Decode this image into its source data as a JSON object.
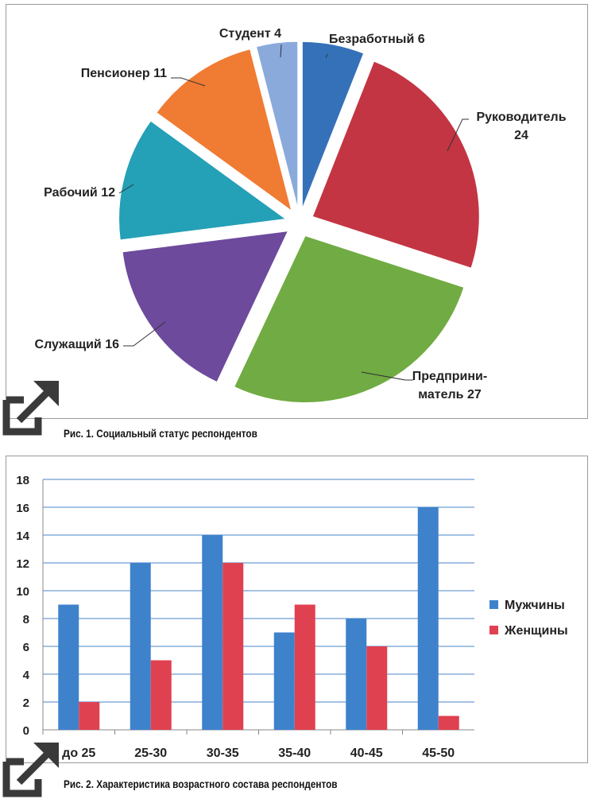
{
  "charts": {
    "pie": {
      "caption": "Рис. 1. Социальный статус респондентов",
      "chart_data": {
        "type": "pie",
        "slices": [
          {
            "label_lines": [
              "Безработный 6"
            ],
            "value": 6,
            "color": "#3571b8"
          },
          {
            "label_lines": [
              "Руководитель",
              "24"
            ],
            "value": 24,
            "color": "#c33543"
          },
          {
            "label_lines": [
              "Предприни-",
              "матель 27"
            ],
            "value": 27,
            "color": "#71ab43"
          },
          {
            "label_lines": [
              "Служащий 16"
            ],
            "value": 16,
            "color": "#6d4a9c"
          },
          {
            "label_lines": [
              "Рабочий 12"
            ],
            "value": 12,
            "color": "#24a0b7"
          },
          {
            "label_lines": [
              "Пенсионер 11"
            ],
            "value": 11,
            "color": "#f07b33"
          },
          {
            "label_lines": [
              "Студент 4"
            ],
            "value": 4,
            "color": "#8aaadb"
          }
        ]
      }
    },
    "bar": {
      "caption": "Рис. 2. Характеристика возрастного состава респондентов",
      "chart_data": {
        "type": "bar",
        "categories": [
          "до 25",
          "25-30",
          "30-35",
          "35-40",
          "40-45",
          "45-50"
        ],
        "series": [
          {
            "name": "Мужчины",
            "values": [
              9,
              12,
              14,
              7,
              8,
              16
            ],
            "color": "#3f82cc"
          },
          {
            "name": "Женщины",
            "values": [
              2,
              5,
              12,
              9,
              6,
              1
            ],
            "color": "#e04150"
          }
        ],
        "ylim": [
          0,
          18
        ],
        "yticks": [
          0,
          2,
          4,
          6,
          8,
          10,
          12,
          14,
          16,
          18
        ],
        "grid": true,
        "legend": "right"
      }
    }
  }
}
